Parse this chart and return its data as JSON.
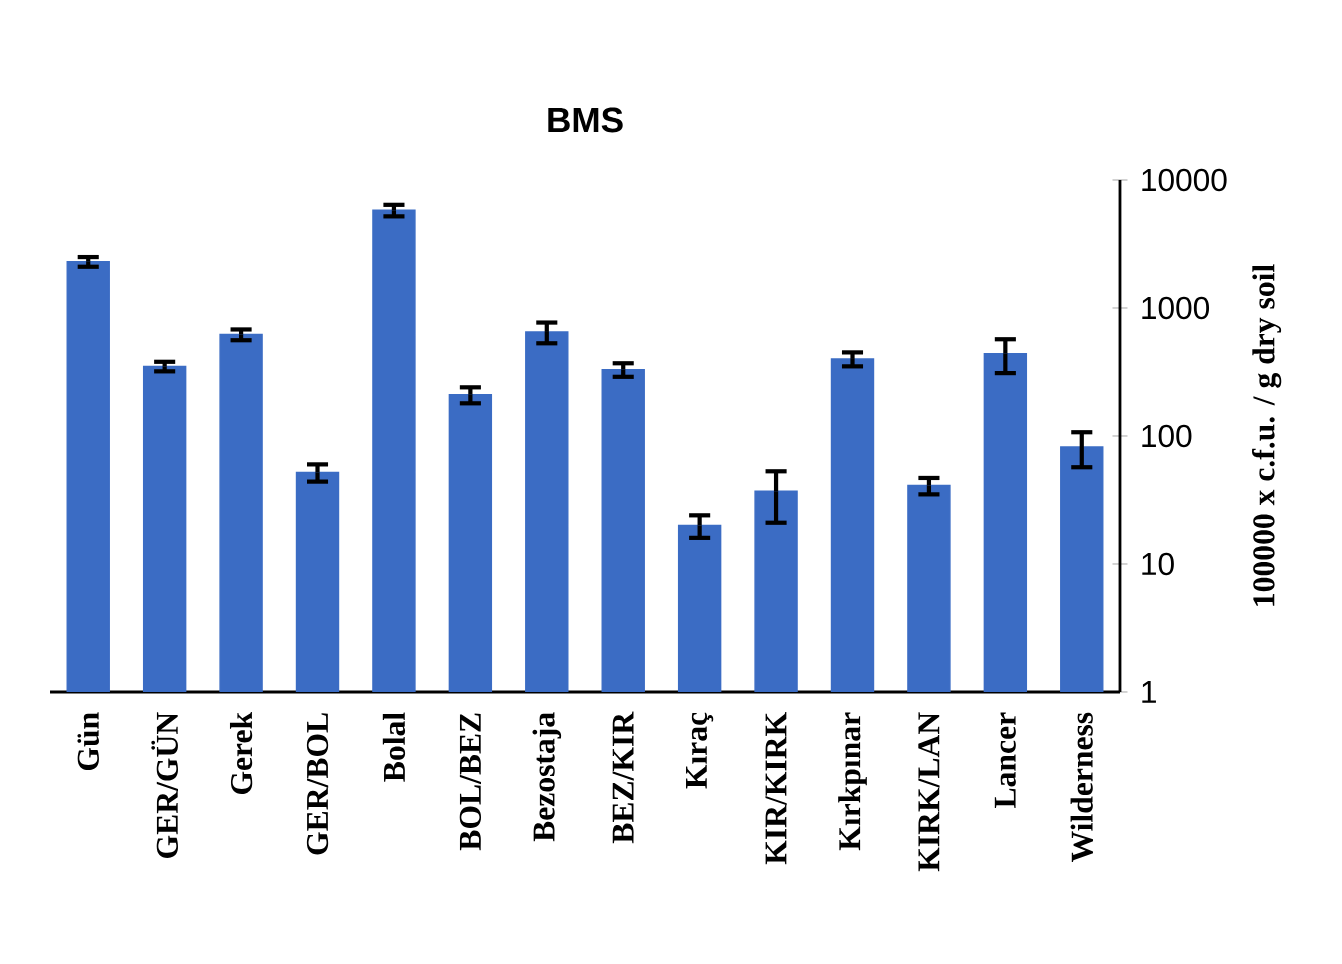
{
  "chart_data": {
    "type": "bar",
    "title": "BMS",
    "ylabel": "100000 x c.f.u. / g dry soil",
    "categories": [
      "Gün",
      "GER/GÜN",
      "Gerek",
      "GER/BOL",
      "Bolal",
      "BOL/BEZ",
      "Bezostaja",
      "BEZ/KIR",
      "Kıraç",
      "KIR/KIRK",
      "Kırkpınar",
      "KIRK/LAN",
      "Lancer",
      "Wilderness"
    ],
    "values": [
      2300,
      350,
      620,
      52,
      5800,
      210,
      650,
      330,
      20,
      37,
      400,
      41,
      440,
      82
    ],
    "errors": [
      200,
      30,
      60,
      8,
      600,
      30,
      120,
      40,
      4,
      16,
      50,
      6,
      130,
      25
    ],
    "color": "#3b6cc4",
    "log": "y",
    "ylim": [
      1,
      10000
    ],
    "yticks": [
      1,
      10,
      100,
      1000,
      10000
    ]
  }
}
